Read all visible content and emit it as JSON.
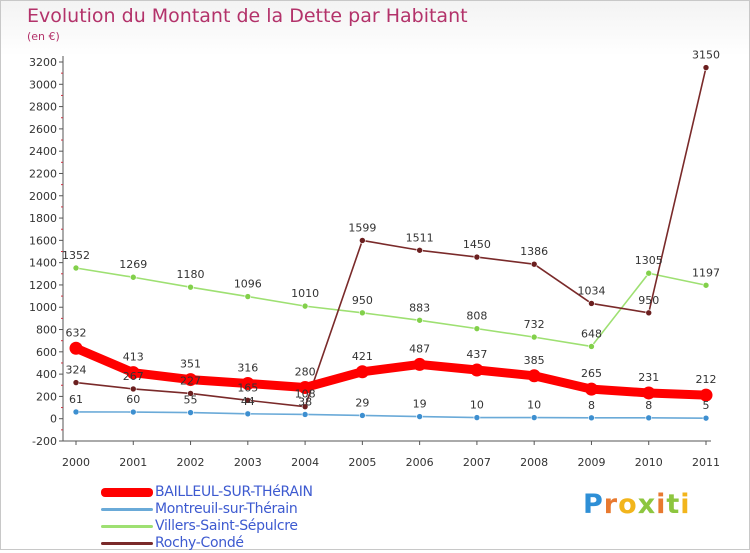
{
  "title": "Evolution du Montant de la Dette par Habitant",
  "unit": "(en €)",
  "logo": {
    "letters": [
      "P",
      "r",
      "o",
      "x",
      "i",
      "t",
      "i"
    ],
    "colors": [
      "#2e8fd6",
      "#e8792f",
      "#f2b51c",
      "#8dc63f",
      "#e8792f",
      "#8dc63f",
      "#f2b51c"
    ]
  },
  "chart_data": {
    "type": "line",
    "title": "Evolution du Montant de la Dette par Habitant",
    "ylabel": "(en €)",
    "xlabel": "",
    "x": [
      "2000",
      "2001",
      "2002",
      "2003",
      "2004",
      "2005",
      "2006",
      "2007",
      "2008",
      "2009",
      "2010",
      "2011"
    ],
    "ylim": [
      -200,
      3200
    ],
    "yticks": [
      -200,
      0,
      200,
      400,
      600,
      800,
      1000,
      1200,
      1400,
      1600,
      1800,
      2000,
      2200,
      2400,
      2600,
      2800,
      3000,
      3200
    ],
    "grid": false,
    "legend_position": "bottom-left",
    "series": [
      {
        "name": "BAILLEUL-SUR-THéRAIN",
        "color": "#ff0000",
        "marker": "#ff0000",
        "emphasis": true,
        "values": [
          632,
          413,
          351,
          316,
          280,
          421,
          487,
          437,
          385,
          265,
          231,
          212
        ],
        "labels": [
          "632",
          "413",
          "351",
          "316",
          "280",
          "421",
          "487",
          "437",
          "385",
          "265",
          "231",
          "212"
        ]
      },
      {
        "name": "Montreuil-sur-Thérain",
        "color": "#6aaad8",
        "marker": "#3d8fd0",
        "emphasis": false,
        "values": [
          61,
          60,
          55,
          44,
          38,
          29,
          19,
          10,
          10,
          8,
          8,
          5
        ],
        "labels": [
          "61",
          "60",
          "55",
          "44",
          "38",
          "29",
          "19",
          "10",
          "10",
          "8",
          "8",
          "5"
        ]
      },
      {
        "name": "Villers-Saint-Sépulcre",
        "color": "#9ee072",
        "marker": "#82d04a",
        "emphasis": false,
        "values": [
          1352,
          1269,
          1180,
          1096,
          1010,
          950,
          883,
          808,
          732,
          648,
          1305,
          1197
        ],
        "labels": [
          "1352",
          "1269",
          "1180",
          "1096",
          "1010",
          "950",
          "883",
          "808",
          "732",
          "648",
          "1305",
          "1197"
        ]
      },
      {
        "name": "Rochy-Condé",
        "color": "#7a2a2a",
        "marker": "#6b1f1f",
        "emphasis": false,
        "values": [
          324,
          267,
          227,
          165,
          108,
          1599,
          1511,
          1450,
          1386,
          1034,
          950,
          3150
        ],
        "labels": [
          "324",
          "267",
          "227",
          "165",
          "108",
          "1599",
          "1511",
          "1450",
          "1386",
          "1034",
          "950",
          "3150"
        ]
      }
    ]
  }
}
